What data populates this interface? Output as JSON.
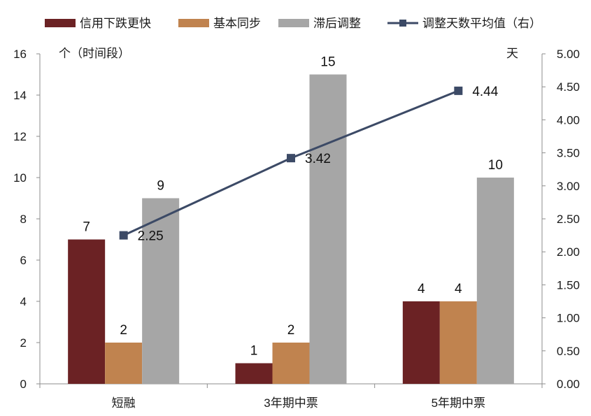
{
  "chart_data": {
    "type": "bar",
    "categories": [
      "短融",
      "3年期中票",
      "5年期中票"
    ],
    "series": [
      {
        "name": "信用下跌更快",
        "type": "bar",
        "axis": "left",
        "color": "#6b2224",
        "values": [
          7,
          1,
          4
        ]
      },
      {
        "name": "基本同步",
        "type": "bar",
        "axis": "left",
        "color": "#c0834f",
        "values": [
          2,
          2,
          4
        ]
      },
      {
        "name": "滞后调整",
        "type": "bar",
        "axis": "left",
        "color": "#a6a6a6",
        "values": [
          9,
          15,
          10
        ]
      },
      {
        "name": "调整天数平均值（右）",
        "type": "line",
        "axis": "right",
        "color": "#3c4a66",
        "values": [
          2.25,
          3.42,
          4.44
        ],
        "labels": [
          "2.25",
          "3.42",
          "4.44"
        ]
      }
    ],
    "y_left": {
      "unit": "个（时间段）",
      "min": 0,
      "max": 16,
      "ticks": [
        "0",
        "2",
        "4",
        "6",
        "8",
        "10",
        "12",
        "14",
        "16"
      ]
    },
    "y_right": {
      "unit": "天",
      "min": 0,
      "max": 5,
      "ticks": [
        "0.00",
        "0.50",
        "1.00",
        "1.50",
        "2.00",
        "2.50",
        "3.00",
        "3.50",
        "4.00",
        "4.50",
        "5.00"
      ]
    },
    "legend_position": "top",
    "grid": false
  }
}
